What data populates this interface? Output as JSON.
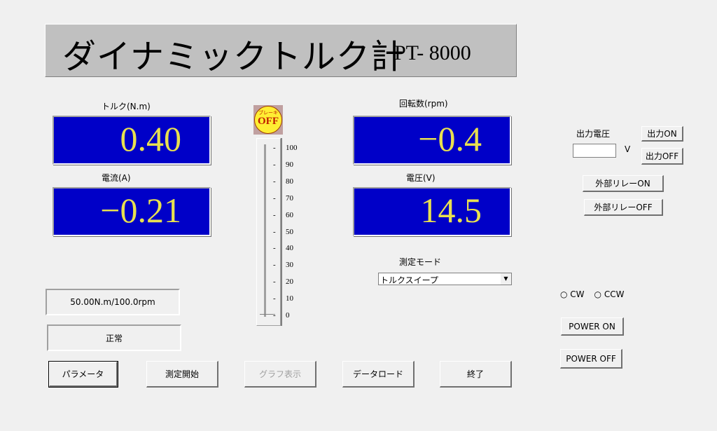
{
  "header": {
    "title": "ダイナミックトルク計",
    "model": "PT- 8000"
  },
  "torque": {
    "label": "トルク(N.m)",
    "value": "0.40"
  },
  "current": {
    "label": "電流(A)",
    "value": "−0.21"
  },
  "rpm": {
    "label": "回転数(rpm)",
    "value": "−0.4"
  },
  "voltage": {
    "label": "電圧(V)",
    "value": "14.5"
  },
  "brake": {
    "top": "ブレーキ",
    "bottom": "OFF"
  },
  "slider": {
    "ticks": [
      "100",
      "90",
      "80",
      "70",
      "60",
      "50",
      "40",
      "30",
      "20",
      "10",
      "0"
    ],
    "value": 0
  },
  "mode": {
    "label": "測定モード",
    "selected": "トルクスイープ"
  },
  "range_status": "50.00N.m/100.0rpm",
  "status": "正常",
  "output": {
    "label": "出力電圧",
    "value": "",
    "unit": "V",
    "on": "出力ON",
    "off": "出力OFF"
  },
  "relay": {
    "on": "外部リレーON",
    "off": "外部リレーOFF"
  },
  "direction": {
    "cw": "CW",
    "ccw": "CCW"
  },
  "power": {
    "on": "POWER ON",
    "off": "POWER OFF"
  },
  "buttons": {
    "params": "パラメータ",
    "start": "測定開始",
    "graph": "グラフ表示",
    "load": "データロード",
    "exit": "終了"
  },
  "colors": {
    "display_bg": "#0000c8",
    "display_fg": "#e8e050",
    "brake": "#ffee33"
  }
}
